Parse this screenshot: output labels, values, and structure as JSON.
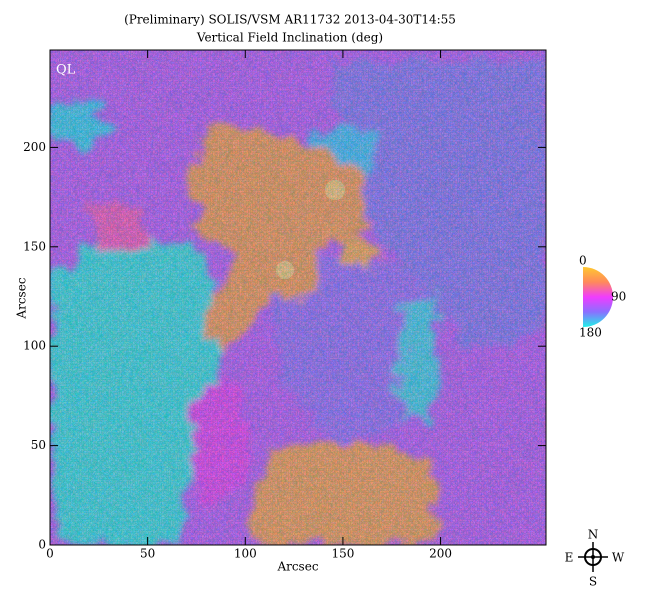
{
  "chart_data": {
    "type": "heatmap",
    "title": "(Preliminary) SOLIS/VSM AR11732 2013-04-30T14:55",
    "subtitle": "Vertical Field Inclination (deg)",
    "xlabel": "Arcsec",
    "ylabel": "Arcsec",
    "xlim": [
      0,
      254
    ],
    "ylim": [
      0,
      249
    ],
    "xticks": [
      0,
      50,
      100,
      150,
      200
    ],
    "yticks": [
      0,
      50,
      100,
      150,
      200
    ],
    "annotation": "QL",
    "colorbar": {
      "range": [
        0,
        180
      ],
      "ticks": [
        0,
        90,
        180
      ]
    }
  },
  "compass": {
    "north": "N",
    "south": "S",
    "east": "E",
    "west": "W"
  }
}
